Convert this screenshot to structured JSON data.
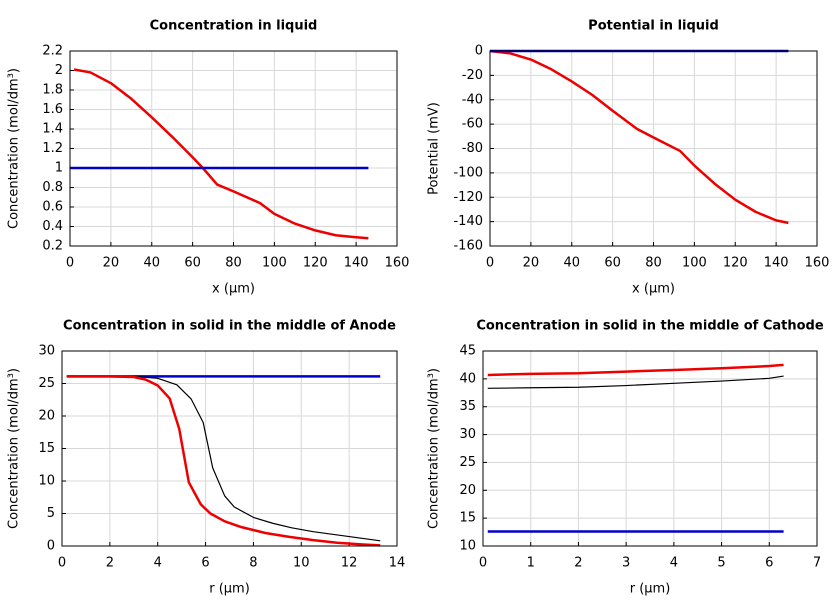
{
  "chart_data": [
    {
      "type": "line",
      "title": "Concentration in liquid",
      "xlabel": "x (µm)",
      "ylabel": "Concentration (mol/dm³)",
      "xlim": [
        0,
        160
      ],
      "xticks": [
        0,
        20,
        40,
        60,
        80,
        100,
        120,
        140,
        160
      ],
      "ylim": [
        0.2,
        2.2
      ],
      "yticks": [
        0.2,
        0.4,
        0.6,
        0.8,
        1,
        1.2,
        1.4,
        1.6,
        1.8,
        2,
        2.2
      ],
      "grid": true,
      "series": [
        {
          "color": "#ee0000",
          "line_width": 2.5,
          "x": [
            2,
            10,
            20,
            30,
            40,
            50,
            60,
            65,
            72,
            80,
            93,
            100,
            110,
            120,
            130,
            140,
            146
          ],
          "values": [
            2.01,
            1.98,
            1.87,
            1.71,
            1.52,
            1.32,
            1.11,
            1.0,
            0.83,
            0.76,
            0.64,
            0.53,
            0.43,
            0.36,
            0.31,
            0.29,
            0.28
          ]
        },
        {
          "color": "#0000cc",
          "line_width": 2.5,
          "x": [
            0,
            146
          ],
          "values": [
            1,
            1
          ]
        }
      ]
    },
    {
      "type": "line",
      "title": "Potential in liquid",
      "xlabel": "x (µm)",
      "ylabel": "Potential (mV)",
      "xlim": [
        0,
        160
      ],
      "xticks": [
        0,
        20,
        40,
        60,
        80,
        100,
        120,
        140,
        160
      ],
      "ylim": [
        -160,
        0
      ],
      "yticks": [
        -160,
        -140,
        -120,
        -100,
        -80,
        -60,
        -40,
        -20,
        0
      ],
      "grid": true,
      "series": [
        {
          "color": "#ee0000",
          "line_width": 2.5,
          "x": [
            0,
            10,
            20,
            30,
            40,
            50,
            60,
            72,
            80,
            93,
            100,
            110,
            120,
            130,
            140,
            146
          ],
          "values": [
            0,
            -2,
            -7,
            -15,
            -25,
            -36,
            -49,
            -64,
            -71,
            -82,
            -94,
            -109,
            -122,
            -132,
            -139,
            -141
          ]
        },
        {
          "color": "#0000cc",
          "line_width": 2.5,
          "x": [
            0,
            146
          ],
          "values": [
            0,
            0
          ]
        }
      ]
    },
    {
      "type": "line",
      "title": "Concentration in solid in the middle of Anode",
      "xlabel": "r (µm)",
      "ylabel": "Concentration (mol/dm³)",
      "xlim": [
        0,
        14
      ],
      "xticks": [
        0,
        2,
        4,
        6,
        8,
        10,
        12,
        14
      ],
      "ylim": [
        0,
        30
      ],
      "yticks": [
        0,
        5,
        10,
        15,
        20,
        25,
        30
      ],
      "grid": true,
      "series": [
        {
          "color": "#0000cc",
          "line_width": 2.5,
          "x": [
            0.2,
            13.3
          ],
          "values": [
            26.1,
            26.1
          ]
        },
        {
          "color": "#000000",
          "line_width": 1.2,
          "x": [
            0.2,
            3,
            4,
            4.8,
            5.4,
            5.9,
            6.3,
            6.8,
            7.2,
            8,
            8.8,
            9.6,
            10.5,
            11.5,
            12.5,
            13.3
          ],
          "values": [
            26.1,
            26.1,
            25.8,
            24.8,
            22.6,
            19,
            12,
            7.7,
            6,
            4.4,
            3.5,
            2.8,
            2.2,
            1.7,
            1.2,
            0.8
          ]
        },
        {
          "color": "#ee0000",
          "line_width": 2.5,
          "x": [
            0.2,
            2,
            3,
            3.5,
            4,
            4.5,
            4.9,
            5.3,
            5.8,
            6.2,
            6.8,
            7.5,
            8.5,
            9.5,
            10.5,
            11.5,
            12.5,
            13.3
          ],
          "values": [
            26.1,
            26.1,
            26,
            25.6,
            24.7,
            22.7,
            18,
            9.8,
            6.4,
            5,
            3.8,
            2.9,
            2,
            1.4,
            0.9,
            0.5,
            0.25,
            0.1
          ]
        }
      ]
    },
    {
      "type": "line",
      "title": "Concentration in solid in the middle of Cathode",
      "xlabel": "r (µm)",
      "ylabel": "Concentration (mol/dm³)",
      "xlim": [
        0,
        7
      ],
      "xticks": [
        0,
        1,
        2,
        3,
        4,
        5,
        6,
        7
      ],
      "ylim": [
        10,
        45
      ],
      "yticks": [
        10,
        15,
        20,
        25,
        30,
        35,
        40,
        45
      ],
      "grid": true,
      "series": [
        {
          "color": "#0000cc",
          "line_width": 2.5,
          "x": [
            0.1,
            6.3
          ],
          "values": [
            12.6,
            12.6
          ]
        },
        {
          "color": "#000000",
          "line_width": 1.2,
          "x": [
            0.1,
            1,
            2,
            3,
            4,
            5,
            6,
            6.3
          ],
          "values": [
            38.3,
            38.4,
            38.5,
            38.8,
            39.2,
            39.6,
            40.1,
            40.5
          ]
        },
        {
          "color": "#ee0000",
          "line_width": 2.5,
          "x": [
            0.1,
            1,
            2,
            3,
            4,
            5,
            6,
            6.3
          ],
          "values": [
            40.7,
            40.9,
            41,
            41.3,
            41.6,
            41.9,
            42.3,
            42.5
          ]
        }
      ]
    }
  ]
}
